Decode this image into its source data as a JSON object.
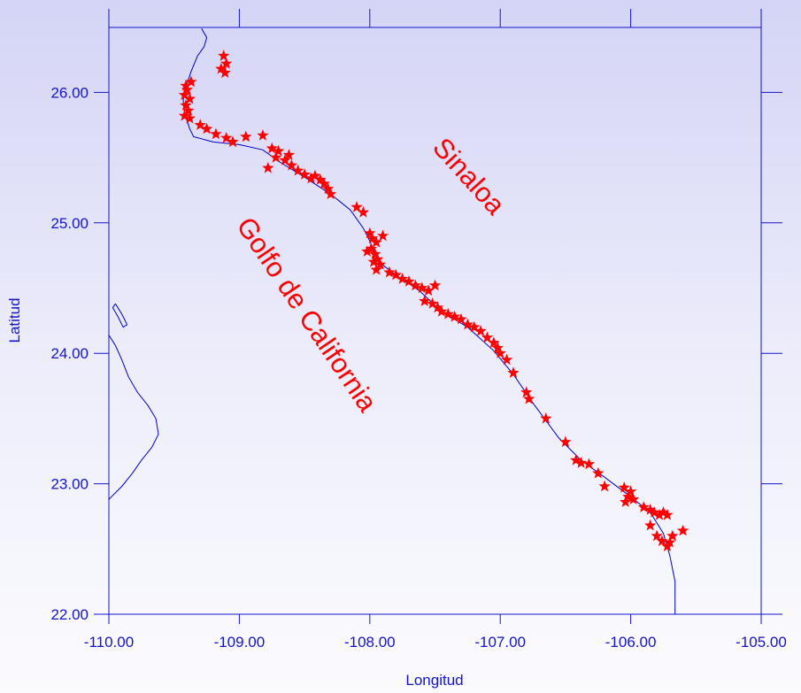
{
  "map": {
    "xlabel": "Longitud",
    "ylabel": "Latitud",
    "labels": {
      "region": "Sinaloa",
      "gulf": "Golfo de California"
    },
    "colors": {
      "axis": "#1414c8",
      "coastline": "#0000c0",
      "markers": "#ff0000",
      "text": "#ff0000",
      "background_top": "#d4d4f6",
      "background_bottom": "#fbfbfe"
    },
    "marker_icon": "star-icon"
  },
  "chart_data": {
    "type": "scatter",
    "xlabel": "Longitud",
    "ylabel": "Latitud",
    "xlim": [
      -110,
      -105
    ],
    "ylim": [
      22,
      26.5
    ],
    "xticks": [
      -110,
      -109,
      -108,
      -107,
      -106,
      -105
    ],
    "xtick_labels": [
      "-110.00",
      "-109.00",
      "-108.00",
      "-107.00",
      "-106.00",
      "-105.00"
    ],
    "yticks": [
      22,
      23,
      24,
      25,
      26
    ],
    "ytick_labels": [
      "22.00",
      "23.00",
      "24.00",
      "25.00",
      "26.00"
    ],
    "grid": false,
    "annotations": [
      "Sinaloa",
      "Golfo de California"
    ],
    "coastline_mainland": [
      [
        -109.29,
        26.49
      ],
      [
        -109.25,
        26.42
      ],
      [
        -109.27,
        26.35
      ],
      [
        -109.32,
        26.28
      ],
      [
        -109.37,
        26.16
      ],
      [
        -109.41,
        26.04
      ],
      [
        -109.43,
        25.94
      ],
      [
        -109.42,
        25.84
      ],
      [
        -109.38,
        25.72
      ],
      [
        -109.35,
        25.66
      ],
      [
        -109.2,
        25.62
      ],
      [
        -109.0,
        25.6
      ],
      [
        -108.82,
        25.56
      ],
      [
        -108.68,
        25.46
      ],
      [
        -108.5,
        25.35
      ],
      [
        -108.3,
        25.22
      ],
      [
        -108.15,
        25.1
      ],
      [
        -108.05,
        24.96
      ],
      [
        -107.98,
        24.82
      ],
      [
        -107.93,
        24.7
      ],
      [
        -107.8,
        24.6
      ],
      [
        -107.62,
        24.48
      ],
      [
        -107.45,
        24.32
      ],
      [
        -107.25,
        24.2
      ],
      [
        -107.05,
        24.02
      ],
      [
        -106.9,
        23.84
      ],
      [
        -106.75,
        23.62
      ],
      [
        -106.55,
        23.35
      ],
      [
        -106.38,
        23.18
      ],
      [
        -106.2,
        23.05
      ],
      [
        -106.0,
        22.9
      ],
      [
        -105.85,
        22.78
      ],
      [
        -105.75,
        22.62
      ],
      [
        -105.7,
        22.45
      ],
      [
        -105.66,
        22.25
      ],
      [
        -105.66,
        22.0
      ]
    ],
    "coastline_baja": [
      [
        -110.0,
        24.14
      ],
      [
        -109.95,
        24.06
      ],
      [
        -109.9,
        23.95
      ],
      [
        -109.85,
        23.82
      ],
      [
        -109.78,
        23.7
      ],
      [
        -109.7,
        23.6
      ],
      [
        -109.64,
        23.5
      ],
      [
        -109.62,
        23.38
      ],
      [
        -109.67,
        23.28
      ],
      [
        -109.75,
        23.18
      ],
      [
        -109.82,
        23.08
      ],
      [
        -109.9,
        22.98
      ],
      [
        -109.98,
        22.9
      ],
      [
        -110.0,
        22.88
      ]
    ],
    "island": [
      [
        -109.95,
        24.38
      ],
      [
        -109.9,
        24.3
      ],
      [
        -109.86,
        24.22
      ],
      [
        -109.89,
        24.2
      ],
      [
        -109.93,
        24.28
      ],
      [
        -109.97,
        24.35
      ],
      [
        -109.95,
        24.38
      ]
    ],
    "series": [
      {
        "values_xy": [
          [
            -109.12,
            26.28
          ],
          [
            -109.1,
            26.22
          ],
          [
            -109.14,
            26.18
          ],
          [
            -109.11,
            26.15
          ],
          [
            -109.37,
            26.08
          ],
          [
            -109.4,
            26.02
          ],
          [
            -109.42,
            25.98
          ],
          [
            -109.38,
            25.95
          ],
          [
            -109.41,
            25.9
          ],
          [
            -109.39,
            25.86
          ],
          [
            -109.42,
            25.82
          ],
          [
            -109.38,
            25.8
          ],
          [
            -109.41,
            26.05
          ],
          [
            -109.3,
            25.75
          ],
          [
            -109.25,
            25.72
          ],
          [
            -109.18,
            25.68
          ],
          [
            -109.1,
            25.65
          ],
          [
            -108.95,
            25.66
          ],
          [
            -108.82,
            25.67
          ],
          [
            -109.05,
            25.62
          ],
          [
            -108.75,
            25.57
          ],
          [
            -108.7,
            25.55
          ],
          [
            -108.72,
            25.5
          ],
          [
            -108.65,
            25.48
          ],
          [
            -108.6,
            25.44
          ],
          [
            -108.55,
            25.4
          ],
          [
            -108.5,
            25.37
          ],
          [
            -108.45,
            25.34
          ],
          [
            -108.42,
            25.36
          ],
          [
            -108.38,
            25.33
          ],
          [
            -108.35,
            25.3
          ],
          [
            -108.32,
            25.26
          ],
          [
            -108.3,
            25.22
          ],
          [
            -108.62,
            25.52
          ],
          [
            -108.78,
            25.42
          ],
          [
            -108.1,
            25.12
          ],
          [
            -108.05,
            25.08
          ],
          [
            -108.0,
            24.92
          ],
          [
            -107.98,
            24.88
          ],
          [
            -107.95,
            24.85
          ],
          [
            -107.99,
            24.8
          ],
          [
            -107.96,
            24.76
          ],
          [
            -108.02,
            24.78
          ],
          [
            -107.94,
            24.72
          ],
          [
            -107.97,
            24.7
          ],
          [
            -107.92,
            24.68
          ],
          [
            -107.95,
            24.64
          ],
          [
            -107.9,
            24.9
          ],
          [
            -107.85,
            24.62
          ],
          [
            -107.8,
            24.6
          ],
          [
            -107.75,
            24.57
          ],
          [
            -107.7,
            24.55
          ],
          [
            -107.65,
            24.52
          ],
          [
            -107.6,
            24.5
          ],
          [
            -107.55,
            24.48
          ],
          [
            -107.5,
            24.52
          ],
          [
            -107.58,
            24.4
          ],
          [
            -107.52,
            24.38
          ],
          [
            -107.48,
            24.35
          ],
          [
            -107.45,
            24.32
          ],
          [
            -107.4,
            24.3
          ],
          [
            -107.35,
            24.28
          ],
          [
            -107.3,
            24.26
          ],
          [
            -107.25,
            24.22
          ],
          [
            -107.2,
            24.2
          ],
          [
            -107.15,
            24.17
          ],
          [
            -107.1,
            24.12
          ],
          [
            -107.05,
            24.08
          ],
          [
            -107.02,
            24.04
          ],
          [
            -107.0,
            24.0
          ],
          [
            -106.95,
            23.95
          ],
          [
            -106.9,
            23.85
          ],
          [
            -106.8,
            23.7
          ],
          [
            -106.78,
            23.65
          ],
          [
            -106.65,
            23.5
          ],
          [
            -106.5,
            23.32
          ],
          [
            -106.42,
            23.18
          ],
          [
            -106.38,
            23.16
          ],
          [
            -106.32,
            23.15
          ],
          [
            -106.25,
            23.08
          ],
          [
            -106.2,
            22.98
          ],
          [
            -106.05,
            22.97
          ],
          [
            -106.0,
            22.94
          ],
          [
            -106.02,
            22.9
          ],
          [
            -105.98,
            22.88
          ],
          [
            -106.04,
            22.86
          ],
          [
            -105.9,
            22.82
          ],
          [
            -105.85,
            22.8
          ],
          [
            -105.82,
            22.78
          ],
          [
            -105.78,
            22.76
          ],
          [
            -105.75,
            22.78
          ],
          [
            -105.72,
            22.76
          ],
          [
            -105.85,
            22.68
          ],
          [
            -105.8,
            22.6
          ],
          [
            -105.76,
            22.56
          ],
          [
            -105.72,
            22.52
          ],
          [
            -105.7,
            22.55
          ],
          [
            -105.68,
            22.6
          ],
          [
            -105.6,
            22.64
          ]
        ]
      }
    ]
  }
}
